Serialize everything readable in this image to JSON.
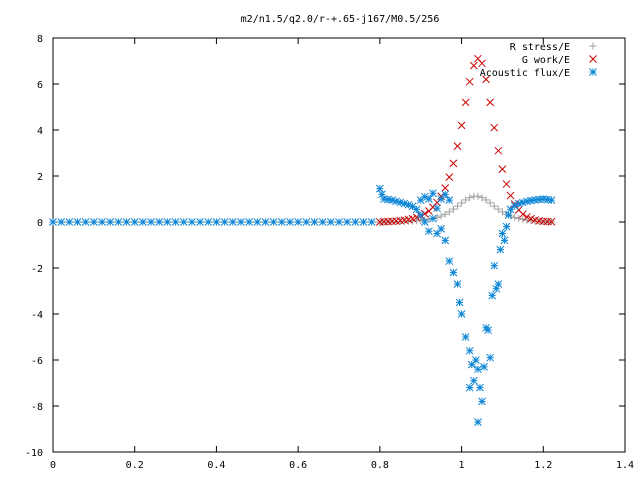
{
  "chart_data": {
    "type": "scatter",
    "title": "m2/n1.5/q2.0/r-+.65-j167/M0.5/256",
    "xlabel": "",
    "ylabel": "",
    "xlim": [
      0,
      1.4
    ],
    "ylim": [
      -10,
      8
    ],
    "x_ticks": [
      "0",
      "0.2",
      "0.4",
      "0.6",
      "0.8",
      "1",
      "1.2",
      "1.4"
    ],
    "y_ticks": [
      "8",
      "6",
      "4",
      "2",
      "0",
      "-2",
      "-4",
      "-6",
      "-8",
      "-10"
    ],
    "legend_position": "top-right",
    "grid": false,
    "series": [
      {
        "name": "R stress/E",
        "marker": "plus",
        "color": "#a0a0a0",
        "points": [
          [
            0.8,
            0.0
          ],
          [
            0.81,
            0.01
          ],
          [
            0.82,
            0.01
          ],
          [
            0.83,
            0.01
          ],
          [
            0.84,
            0.02
          ],
          [
            0.85,
            0.02
          ],
          [
            0.86,
            0.03
          ],
          [
            0.87,
            0.03
          ],
          [
            0.88,
            0.04
          ],
          [
            0.89,
            0.05
          ],
          [
            0.9,
            0.07
          ],
          [
            0.91,
            0.09
          ],
          [
            0.92,
            0.12
          ],
          [
            0.93,
            0.15
          ],
          [
            0.94,
            0.2
          ],
          [
            0.95,
            0.26
          ],
          [
            0.96,
            0.34
          ],
          [
            0.97,
            0.44
          ],
          [
            0.98,
            0.56
          ],
          [
            0.99,
            0.69
          ],
          [
            1.0,
            0.83
          ],
          [
            1.01,
            0.96
          ],
          [
            1.02,
            1.06
          ],
          [
            1.03,
            1.12
          ],
          [
            1.04,
            1.12
          ],
          [
            1.05,
            1.06
          ],
          [
            1.06,
            0.96
          ],
          [
            1.07,
            0.83
          ],
          [
            1.08,
            0.69
          ],
          [
            1.09,
            0.56
          ],
          [
            1.1,
            0.44
          ],
          [
            1.11,
            0.34
          ],
          [
            1.12,
            0.26
          ],
          [
            1.13,
            0.2
          ],
          [
            1.14,
            0.15
          ],
          [
            1.15,
            0.11
          ],
          [
            1.16,
            0.08
          ],
          [
            1.17,
            0.06
          ],
          [
            1.18,
            0.04
          ],
          [
            1.19,
            0.03
          ],
          [
            1.2,
            0.02
          ],
          [
            1.21,
            0.01
          ],
          [
            1.22,
            0.01
          ]
        ]
      },
      {
        "name": "G work/E",
        "marker": "cross",
        "color": "#cc0000",
        "points": [
          [
            0.8,
            0.0
          ],
          [
            0.81,
            0.01
          ],
          [
            0.82,
            0.02
          ],
          [
            0.83,
            0.03
          ],
          [
            0.84,
            0.04
          ],
          [
            0.85,
            0.06
          ],
          [
            0.86,
            0.08
          ],
          [
            0.87,
            0.11
          ],
          [
            0.88,
            0.15
          ],
          [
            0.89,
            0.2
          ],
          [
            0.9,
            0.27
          ],
          [
            0.91,
            0.36
          ],
          [
            0.92,
            0.48
          ],
          [
            0.93,
            0.64
          ],
          [
            0.94,
            0.85
          ],
          [
            0.95,
            1.12
          ],
          [
            0.96,
            1.48
          ],
          [
            0.97,
            1.95
          ],
          [
            0.98,
            2.55
          ],
          [
            0.99,
            3.3
          ],
          [
            1.0,
            4.2
          ],
          [
            1.01,
            5.2
          ],
          [
            1.02,
            6.1
          ],
          [
            1.03,
            6.8
          ],
          [
            1.04,
            7.1
          ],
          [
            1.05,
            6.9
          ],
          [
            1.06,
            6.2
          ],
          [
            1.07,
            5.2
          ],
          [
            1.08,
            4.1
          ],
          [
            1.09,
            3.1
          ],
          [
            1.1,
            2.3
          ],
          [
            1.11,
            1.65
          ],
          [
            1.12,
            1.15
          ],
          [
            1.13,
            0.78
          ],
          [
            1.14,
            0.52
          ],
          [
            1.15,
            0.34
          ],
          [
            1.16,
            0.22
          ],
          [
            1.17,
            0.14
          ],
          [
            1.18,
            0.09
          ],
          [
            1.19,
            0.05
          ],
          [
            1.2,
            0.03
          ],
          [
            1.21,
            0.02
          ],
          [
            1.22,
            0.01
          ]
        ]
      },
      {
        "name": "Acoustic flux/E",
        "marker": "star",
        "color": "#0a84d6",
        "points": [
          [
            0.0,
            0.0
          ],
          [
            0.02,
            0.0
          ],
          [
            0.04,
            0.0
          ],
          [
            0.06,
            0.0
          ],
          [
            0.08,
            0.0
          ],
          [
            0.1,
            0.0
          ],
          [
            0.12,
            0.0
          ],
          [
            0.14,
            0.0
          ],
          [
            0.16,
            0.0
          ],
          [
            0.18,
            0.0
          ],
          [
            0.2,
            0.0
          ],
          [
            0.22,
            0.0
          ],
          [
            0.24,
            0.0
          ],
          [
            0.26,
            0.0
          ],
          [
            0.28,
            0.0
          ],
          [
            0.3,
            0.0
          ],
          [
            0.32,
            0.0
          ],
          [
            0.34,
            0.0
          ],
          [
            0.36,
            0.0
          ],
          [
            0.38,
            0.0
          ],
          [
            0.4,
            0.0
          ],
          [
            0.42,
            0.0
          ],
          [
            0.44,
            0.0
          ],
          [
            0.46,
            0.0
          ],
          [
            0.48,
            0.0
          ],
          [
            0.5,
            0.0
          ],
          [
            0.52,
            0.0
          ],
          [
            0.54,
            0.0
          ],
          [
            0.56,
            0.0
          ],
          [
            0.58,
            0.0
          ],
          [
            0.6,
            0.0
          ],
          [
            0.62,
            0.0
          ],
          [
            0.64,
            0.0
          ],
          [
            0.66,
            0.0
          ],
          [
            0.68,
            0.0
          ],
          [
            0.7,
            0.0
          ],
          [
            0.72,
            0.0
          ],
          [
            0.74,
            0.0
          ],
          [
            0.76,
            0.0
          ],
          [
            0.78,
            0.0
          ],
          [
            0.8,
            1.45
          ],
          [
            0.805,
            1.2
          ],
          [
            0.81,
            1.0
          ],
          [
            0.82,
            0.98
          ],
          [
            0.83,
            0.95
          ],
          [
            0.84,
            0.9
          ],
          [
            0.85,
            0.85
          ],
          [
            0.86,
            0.8
          ],
          [
            0.87,
            0.75
          ],
          [
            0.88,
            0.68
          ],
          [
            0.89,
            0.55
          ],
          [
            0.9,
            0.3
          ],
          [
            0.91,
            0.0
          ],
          [
            0.92,
            -0.4
          ],
          [
            0.93,
            0.15
          ],
          [
            0.94,
            -0.5
          ],
          [
            0.95,
            1.0
          ],
          [
            0.96,
            1.2
          ],
          [
            0.97,
            0.95
          ],
          [
            0.9,
            0.95
          ],
          [
            0.91,
            1.1
          ],
          [
            0.92,
            1.0
          ],
          [
            0.93,
            1.25
          ],
          [
            0.94,
            0.6
          ],
          [
            0.95,
            -0.3
          ],
          [
            0.96,
            -0.8
          ],
          [
            0.97,
            -1.7
          ],
          [
            0.98,
            -2.2
          ],
          [
            0.99,
            -2.7
          ],
          [
            0.995,
            -3.5
          ],
          [
            1.0,
            -4.0
          ],
          [
            1.01,
            -5.0
          ],
          [
            1.02,
            -5.6
          ],
          [
            1.025,
            -6.2
          ],
          [
            1.03,
            -6.9
          ],
          [
            1.035,
            -6.0
          ],
          [
            1.04,
            -6.4
          ],
          [
            1.045,
            -7.2
          ],
          [
            1.02,
            -7.2
          ],
          [
            1.04,
            -8.7
          ],
          [
            1.05,
            -7.8
          ],
          [
            1.055,
            -6.3
          ],
          [
            1.06,
            -4.6
          ],
          [
            1.065,
            -4.7
          ],
          [
            1.07,
            -5.9
          ],
          [
            1.075,
            -3.2
          ],
          [
            1.08,
            -1.9
          ],
          [
            1.085,
            -2.9
          ],
          [
            1.09,
            -2.7
          ],
          [
            1.095,
            -1.2
          ],
          [
            1.1,
            -0.5
          ],
          [
            1.105,
            -0.8
          ],
          [
            1.11,
            -0.2
          ],
          [
            1.115,
            0.3
          ],
          [
            1.12,
            0.55
          ],
          [
            1.13,
            0.7
          ],
          [
            1.14,
            0.8
          ],
          [
            1.15,
            0.85
          ],
          [
            1.16,
            0.9
          ],
          [
            1.17,
            0.93
          ],
          [
            1.18,
            0.96
          ],
          [
            1.19,
            0.98
          ],
          [
            1.2,
            1.0
          ],
          [
            1.21,
            0.98
          ],
          [
            1.22,
            0.95
          ]
        ]
      }
    ]
  }
}
